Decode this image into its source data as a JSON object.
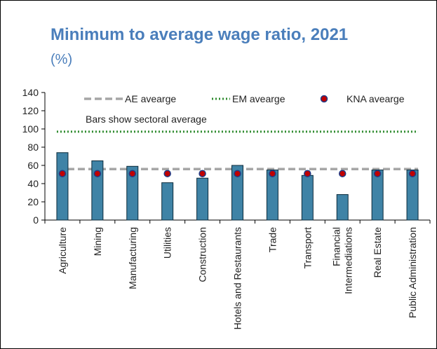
{
  "chart_data": {
    "type": "bar",
    "title": "Minimum to average wage ratio, 2021",
    "subtitle": "(%)",
    "annotation": "Bars show sectoral average",
    "categories": [
      [
        "Agriculture"
      ],
      [
        "Mining"
      ],
      [
        "Manufacturing"
      ],
      [
        "Utilities"
      ],
      [
        "Construction"
      ],
      [
        "Hotels and Restaurants"
      ],
      [
        "Trade"
      ],
      [
        "Transport"
      ],
      [
        "Financial",
        "Intermediations"
      ],
      [
        "Real Estate"
      ],
      [
        "Public Administration"
      ]
    ],
    "series": [
      {
        "values": [
          74,
          65,
          59,
          41,
          46,
          60,
          55,
          49,
          28,
          55,
          55
        ]
      },
      {
        "name": "KNA avearge",
        "values": [
          51,
          51,
          51,
          51,
          51,
          51,
          51,
          51,
          51,
          51,
          51
        ]
      }
    ],
    "reference_lines": [
      {
        "name": "AE avearge",
        "value": 56,
        "style": "dashed",
        "color": "#a6a6a6"
      },
      {
        "name": "EM avearge",
        "value": 97,
        "style": "dotted",
        "color": "#2e8b2e"
      }
    ],
    "yticks": [
      "0",
      "20",
      "40",
      "60",
      "80",
      "100",
      "120",
      "140"
    ],
    "ylim": [
      0,
      140
    ],
    "legend_position": "top",
    "colors": {
      "bar": "#3f83a6",
      "bar_edge": "#0b2a3a",
      "marker": "#c00000",
      "marker_edge": "#1f3c88"
    }
  }
}
